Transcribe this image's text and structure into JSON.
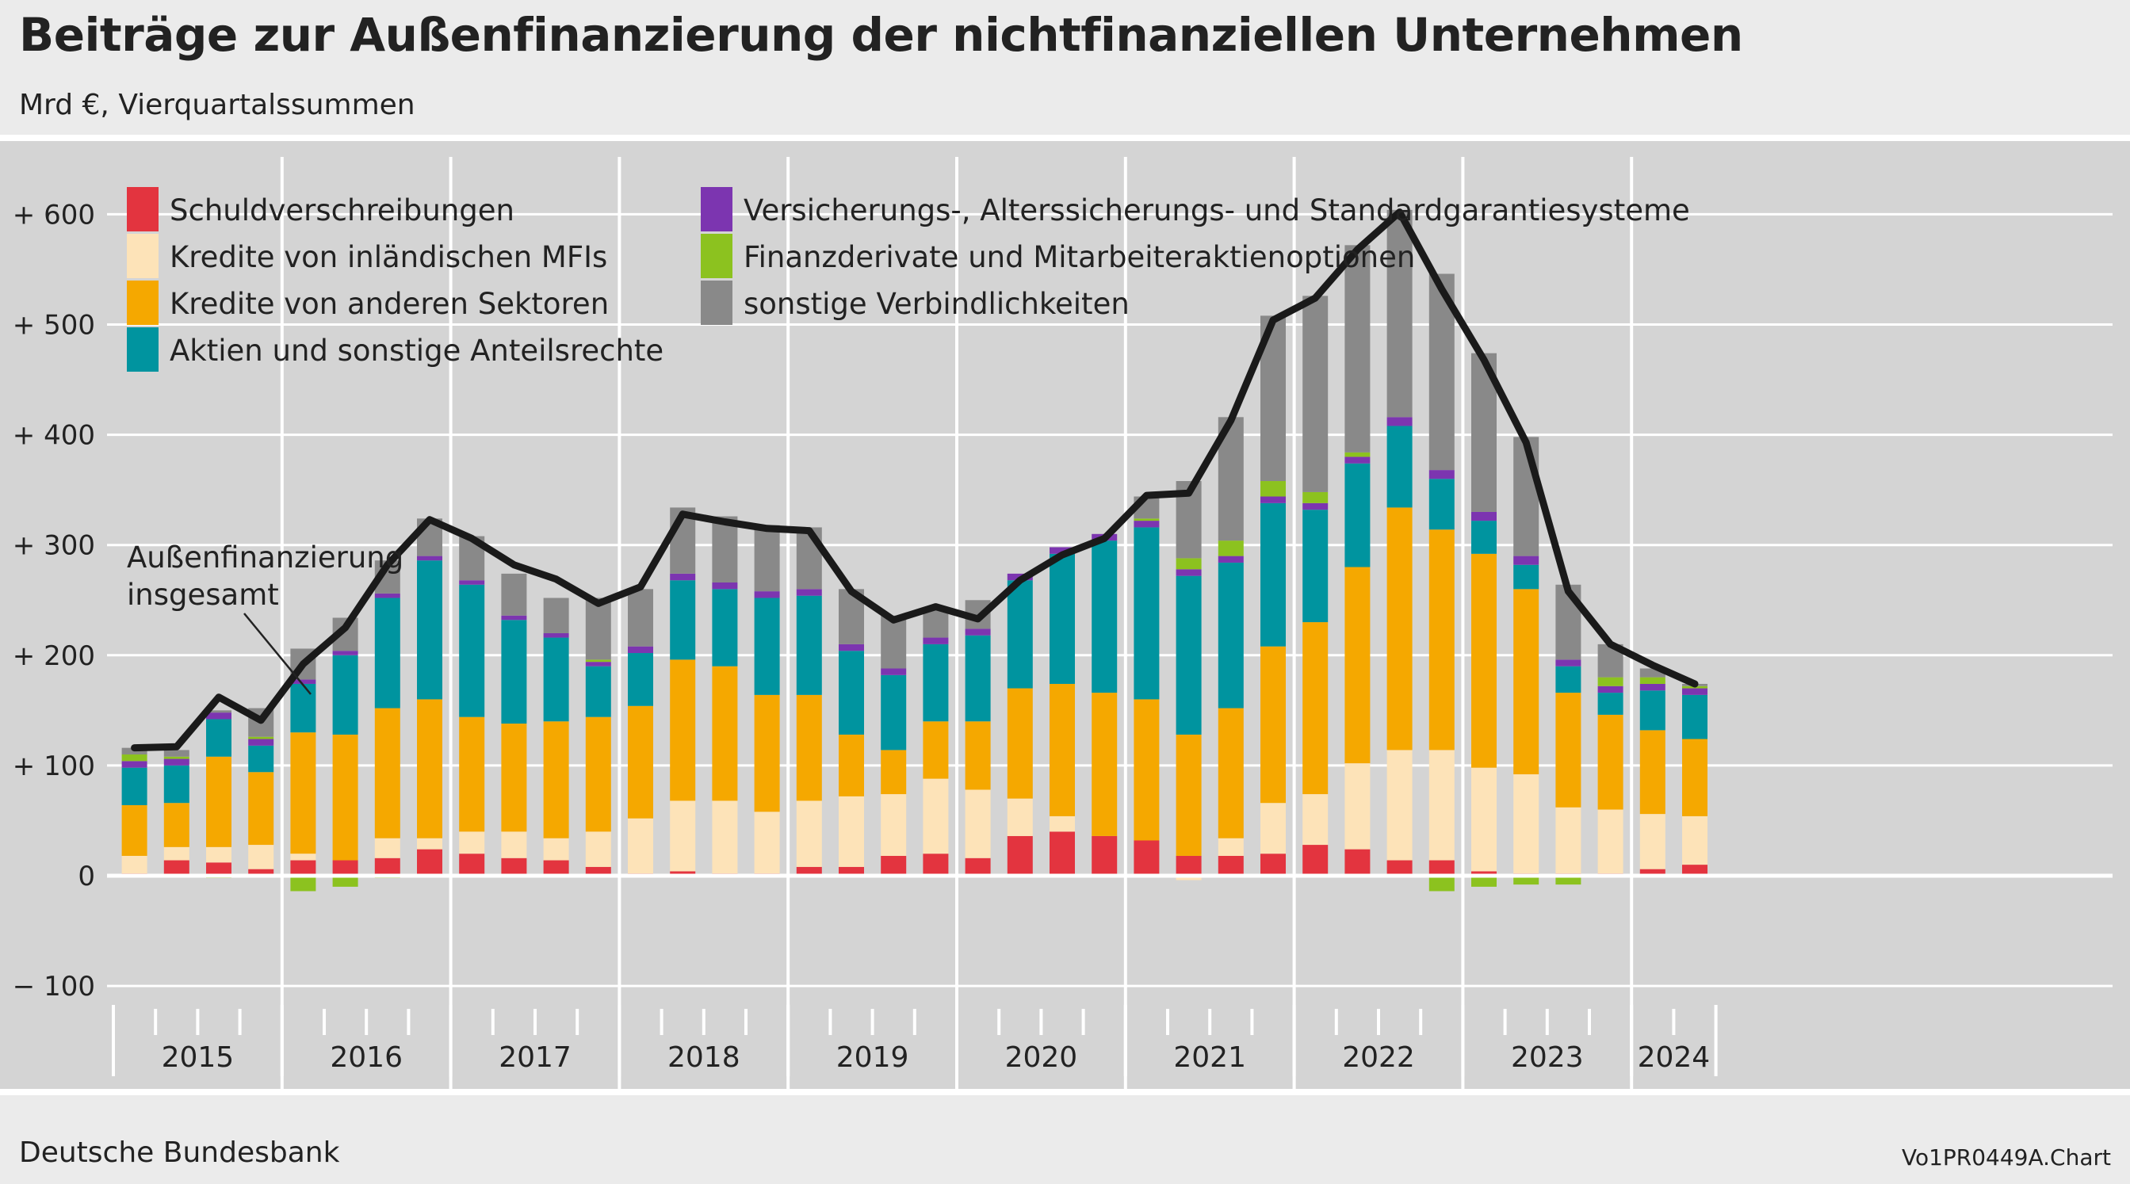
{
  "header": {
    "title": "Beiträge zur Außenfinanzierung der nichtfinanziellen Unternehmen",
    "subtitle": "Mrd €, Vierquartalssummen"
  },
  "footer": {
    "source": "Deutsche Bundesbank",
    "chart_id": "Vo1PR0449A.Chart"
  },
  "colors": {
    "schuldverschreibungen": "#e3343f",
    "kredite_inlaendisch": "#fde3b8",
    "kredite_andere": "#f5a800",
    "aktien": "#00949f",
    "versicherung": "#7c35b0",
    "derivate": "#8cc21f",
    "sonstige": "#898989",
    "total_line": "#1a1a1a"
  },
  "chart_data": {
    "type": "bar",
    "stacked": true,
    "title": "",
    "xlabel": "",
    "ylabel": "",
    "ylim": [
      -100,
      650
    ],
    "yticks": [
      -100,
      0,
      100,
      200,
      300,
      400,
      500,
      600
    ],
    "ytick_labels": [
      "− 100",
      "0",
      "+ 100",
      "+ 200",
      "+ 300",
      "+ 400",
      "+ 500",
      "+ 600"
    ],
    "grid": true,
    "legend_position": "top-left",
    "year_labels": [
      "2015",
      "2016",
      "2017",
      "2018",
      "2019",
      "2020",
      "2021",
      "2022",
      "2023",
      "2024"
    ],
    "categories": [
      "2015 Q1",
      "2015 Q2",
      "2015 Q3",
      "2015 Q4",
      "2016 Q1",
      "2016 Q2",
      "2016 Q3",
      "2016 Q4",
      "2017 Q1",
      "2017 Q2",
      "2017 Q3",
      "2017 Q4",
      "2018 Q1",
      "2018 Q2",
      "2018 Q3",
      "2018 Q4",
      "2019 Q1",
      "2019 Q2",
      "2019 Q3",
      "2019 Q4",
      "2020 Q1",
      "2020 Q2",
      "2020 Q3",
      "2020 Q4",
      "2021 Q1",
      "2021 Q2",
      "2021 Q3",
      "2021 Q4",
      "2022 Q1",
      "2022 Q2",
      "2022 Q3",
      "2022 Q4",
      "2023 Q1",
      "2023 Q2",
      "2023 Q3",
      "2023 Q4",
      "2024 Q1",
      "2024 Q2"
    ],
    "series": [
      {
        "name": "Schuldverschreibungen",
        "color_key": "schuldverschreibungen",
        "values": [
          2,
          14,
          12,
          6,
          14,
          14,
          16,
          24,
          20,
          16,
          14,
          8,
          2,
          4,
          2,
          2,
          8,
          8,
          18,
          20,
          16,
          36,
          40,
          36,
          32,
          18,
          18,
          20,
          28,
          24,
          14,
          14,
          4,
          2,
          2,
          2,
          6,
          10
        ]
      },
      {
        "name": "Kredite von inländischen MFIs",
        "color_key": "kredite_inlaendisch",
        "values": [
          16,
          12,
          14,
          22,
          6,
          0,
          18,
          10,
          20,
          24,
          20,
          32,
          50,
          64,
          66,
          56,
          60,
          64,
          56,
          68,
          62,
          34,
          14,
          0,
          0,
          -4,
          16,
          46,
          46,
          78,
          100,
          100,
          94,
          90,
          60,
          58,
          50,
          44
        ]
      },
      {
        "name": "Kredite von anderen Sektoren",
        "color_key": "kredite_andere",
        "values": [
          46,
          40,
          82,
          66,
          110,
          114,
          118,
          126,
          104,
          98,
          106,
          104,
          102,
          128,
          122,
          106,
          96,
          56,
          40,
          52,
          62,
          100,
          120,
          130,
          128,
          110,
          118,
          142,
          156,
          178,
          220,
          200,
          194,
          168,
          104,
          86,
          76,
          70
        ]
      },
      {
        "name": "Aktien und sonstige Anteilsrechte",
        "color_key": "aktien",
        "values": [
          34,
          34,
          34,
          24,
          44,
          72,
          100,
          126,
          120,
          94,
          76,
          46,
          48,
          72,
          70,
          88,
          90,
          76,
          68,
          70,
          78,
          98,
          118,
          138,
          156,
          144,
          132,
          130,
          102,
          94,
          74,
          46,
          30,
          22,
          24,
          20,
          36,
          40
        ]
      },
      {
        "name": "Versicherungs-, Alterssicherungs- und Standardgarantiesysteme",
        "color_key": "versicherung",
        "values": [
          6,
          6,
          6,
          6,
          4,
          4,
          4,
          4,
          4,
          4,
          4,
          4,
          6,
          6,
          6,
          6,
          6,
          6,
          6,
          6,
          6,
          6,
          6,
          6,
          6,
          6,
          6,
          6,
          6,
          6,
          8,
          8,
          8,
          8,
          6,
          6,
          6,
          6
        ]
      },
      {
        "name": "Finanzderivate und Mitarbeiteraktienoptionen",
        "color_key": "derivate",
        "values": [
          6,
          2,
          -2,
          2,
          -14,
          -10,
          -2,
          0,
          0,
          0,
          0,
          2,
          0,
          0,
          0,
          0,
          0,
          0,
          0,
          0,
          0,
          0,
          0,
          0,
          2,
          10,
          14,
          14,
          10,
          4,
          0,
          -14,
          -10,
          -8,
          -8,
          8,
          6,
          2
        ]
      },
      {
        "name": "sonstige Verbindlichkeiten",
        "color_key": "sonstige",
        "values": [
          6,
          6,
          2,
          26,
          28,
          30,
          30,
          34,
          40,
          38,
          32,
          56,
          52,
          60,
          60,
          60,
          56,
          50,
          48,
          26,
          26,
          0,
          0,
          0,
          20,
          70,
          112,
          150,
          178,
          188,
          188,
          178,
          144,
          108,
          68,
          30,
          8,
          2
        ]
      }
    ],
    "total_label": "Außenfinanzierung insgesamt",
    "total": [
      116,
      117,
      162,
      141,
      192,
      225,
      282,
      323,
      306,
      282,
      269,
      247,
      262,
      328,
      321,
      315,
      313,
      258,
      232,
      244,
      233,
      268,
      291,
      306,
      345,
      347,
      413,
      504,
      524,
      568,
      602,
      532,
      468,
      393,
      258,
      210,
      191,
      174
    ]
  }
}
